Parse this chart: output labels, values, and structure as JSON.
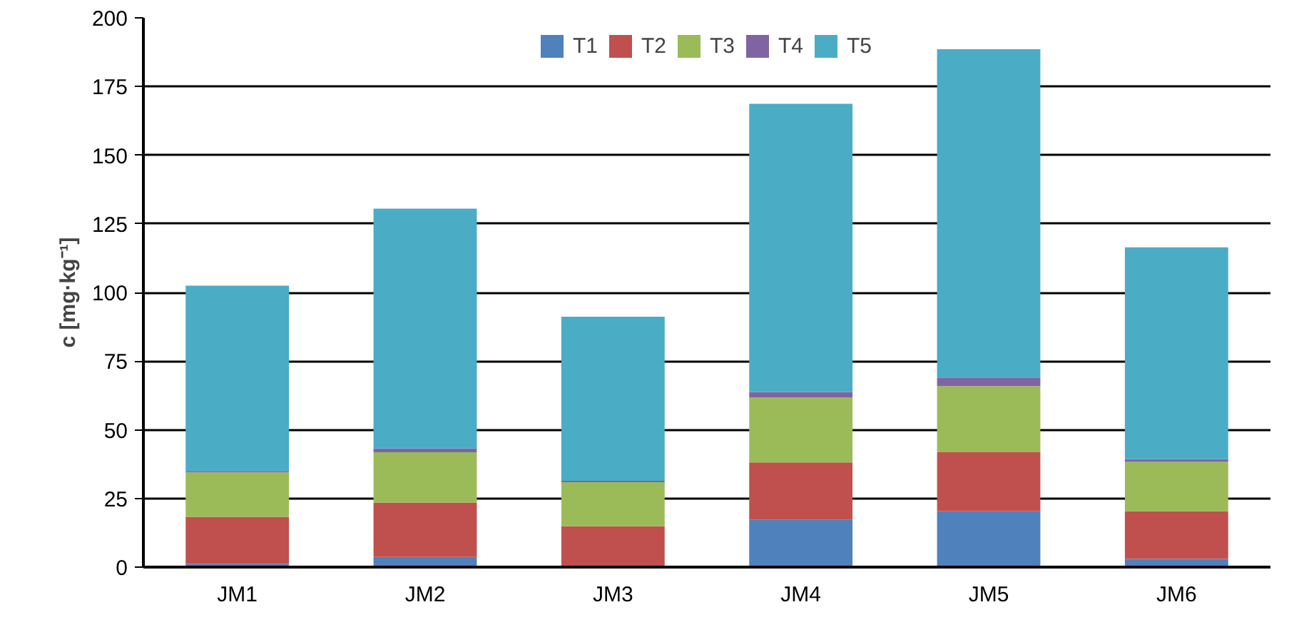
{
  "chart_data": {
    "type": "bar",
    "stacked": true,
    "ylabel": "c [mg·kg⁻¹]",
    "categories": [
      "JM1",
      "JM2",
      "JM3",
      "JM4",
      "JM5",
      "JM6"
    ],
    "series": [
      {
        "name": "T1",
        "color": "#4f81bd",
        "values": [
          1.2,
          3.7,
          null,
          17.2,
          20.3,
          3.0
        ]
      },
      {
        "name": "T2",
        "color": "#c0504d",
        "values": [
          17.1,
          19.8,
          14.9,
          20.9,
          21.5,
          17.4
        ]
      },
      {
        "name": "T3",
        "color": "#9bbb59",
        "values": [
          16.2,
          18.3,
          16.0,
          23.7,
          24.1,
          17.9
        ]
      },
      {
        "name": "T4",
        "color": "#8064a2",
        "values": [
          0.5,
          1.4,
          0.5,
          1.9,
          3.1,
          1.0
        ]
      },
      {
        "name": "T5",
        "color": "#4bacc6",
        "values": [
          67.5,
          87.3,
          59.8,
          105.0,
          119.6,
          77.1
        ]
      }
    ],
    "ylim": [
      0,
      200
    ],
    "yticks": [
      0,
      25,
      50,
      75,
      100,
      125,
      150,
      175,
      200
    ],
    "grid": "y",
    "legend": "top"
  }
}
